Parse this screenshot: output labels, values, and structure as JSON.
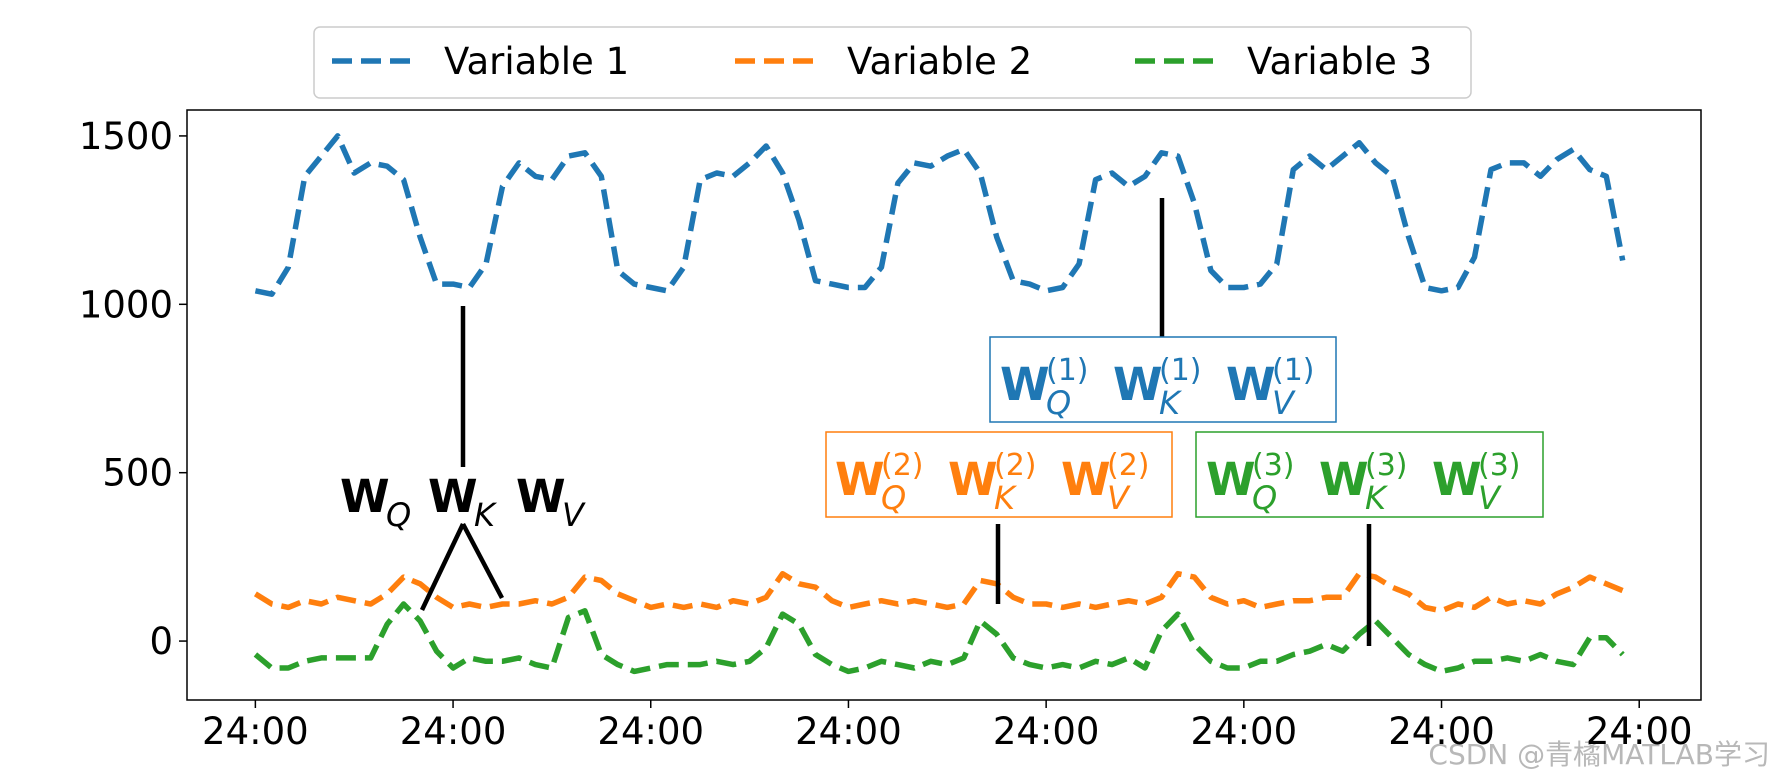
{
  "chart_data": {
    "type": "line",
    "x": [
      0,
      2,
      4,
      6,
      8,
      10,
      12,
      14,
      16,
      18,
      20,
      22,
      24,
      26,
      28,
      30,
      32,
      34,
      36,
      38,
      40,
      42,
      44,
      46,
      48,
      50,
      52,
      54,
      56,
      58,
      60,
      62,
      64,
      66,
      68,
      70,
      72,
      74,
      76,
      78,
      80,
      82,
      84,
      86,
      88,
      90,
      92,
      94,
      96,
      98,
      100,
      102,
      104,
      106,
      108,
      110,
      112,
      114,
      116,
      118,
      120,
      122,
      124,
      126,
      128,
      130,
      132,
      134,
      136,
      138,
      140,
      142,
      144,
      146,
      148,
      150,
      152,
      154,
      156,
      158,
      160,
      162,
      164,
      166
    ],
    "series": [
      {
        "name": "Variable 1",
        "color": "#1f77b4",
        "values": [
          1040,
          1030,
          1110,
          1380,
          1440,
          1500,
          1390,
          1420,
          1410,
          1370,
          1200,
          1060,
          1060,
          1050,
          1120,
          1350,
          1420,
          1380,
          1370,
          1440,
          1450,
          1380,
          1100,
          1060,
          1050,
          1040,
          1110,
          1370,
          1390,
          1380,
          1420,
          1470,
          1390,
          1250,
          1070,
          1060,
          1050,
          1050,
          1110,
          1360,
          1420,
          1410,
          1440,
          1460,
          1390,
          1200,
          1070,
          1060,
          1040,
          1050,
          1120,
          1370,
          1390,
          1350,
          1380,
          1450,
          1440,
          1300,
          1100,
          1050,
          1050,
          1060,
          1120,
          1400,
          1440,
          1400,
          1440,
          1480,
          1420,
          1380,
          1200,
          1050,
          1040,
          1050,
          1140,
          1400,
          1420,
          1420,
          1380,
          1430,
          1460,
          1400,
          1380,
          1130
        ]
      },
      {
        "name": "Variable 2",
        "color": "#ff7f0e",
        "values": [
          140,
          110,
          100,
          120,
          110,
          130,
          120,
          110,
          140,
          190,
          170,
          130,
          100,
          110,
          100,
          110,
          110,
          120,
          110,
          130,
          190,
          180,
          140,
          120,
          100,
          110,
          100,
          110,
          100,
          120,
          110,
          130,
          200,
          170,
          160,
          120,
          100,
          110,
          120,
          110,
          120,
          110,
          100,
          110,
          180,
          170,
          130,
          110,
          110,
          100,
          110,
          100,
          110,
          120,
          110,
          130,
          200,
          190,
          130,
          110,
          120,
          100,
          110,
          120,
          120,
          130,
          130,
          200,
          190,
          160,
          140,
          100,
          90,
          110,
          100,
          130,
          110,
          120,
          110,
          140,
          160,
          190,
          170,
          150
        ]
      },
      {
        "name": "Variable 3",
        "color": "#2ca02c",
        "values": [
          -40,
          -80,
          -80,
          -60,
          -50,
          -50,
          -50,
          -50,
          50,
          110,
          60,
          -30,
          -80,
          -50,
          -60,
          -60,
          -50,
          -70,
          -80,
          70,
          90,
          -40,
          -70,
          -90,
          -80,
          -70,
          -70,
          -70,
          -60,
          -70,
          -60,
          -20,
          80,
          50,
          -40,
          -70,
          -90,
          -80,
          -60,
          -70,
          -80,
          -60,
          -70,
          -50,
          60,
          20,
          -50,
          -70,
          -80,
          -70,
          -80,
          -60,
          -70,
          -50,
          -80,
          30,
          80,
          -10,
          -60,
          -80,
          -80,
          -60,
          -60,
          -40,
          -30,
          -10,
          -30,
          20,
          60,
          10,
          -40,
          -70,
          -90,
          -80,
          -60,
          -60,
          -50,
          -60,
          -40,
          -60,
          -70,
          10,
          10,
          -40
        ]
      }
    ],
    "xlim": [
      -8.3,
      175.5
    ],
    "xticks": [
      {
        "value": 0,
        "label": "24:00"
      },
      {
        "value": 24,
        "label": "24:00"
      },
      {
        "value": 48,
        "label": "24:00"
      },
      {
        "value": 72,
        "label": "24:00"
      },
      {
        "value": 96,
        "label": "24:00"
      },
      {
        "value": 120,
        "label": "24:00"
      },
      {
        "value": 144,
        "label": "24:00"
      },
      {
        "value": 168,
        "label": "24:00"
      }
    ],
    "ylim": [
      -175,
      1577
    ],
    "yticks": [
      0,
      500,
      1000,
      1500
    ],
    "legend": "upper center",
    "annotations": [
      {
        "color": "#000000",
        "terms": [
          {
            "base": "W",
            "sub": "Q"
          },
          {
            "base": "W",
            "sub": "K"
          },
          {
            "base": "W",
            "sub": "V"
          }
        ]
      },
      {
        "color": "#1f77b4",
        "terms": [
          {
            "base": "W",
            "sub": "Q",
            "sup": "(1)"
          },
          {
            "base": "W",
            "sub": "K",
            "sup": "(1)"
          },
          {
            "base": "W",
            "sub": "V",
            "sup": "(1)"
          }
        ]
      },
      {
        "color": "#ff7f0e",
        "terms": [
          {
            "base": "W",
            "sub": "Q",
            "sup": "(2)"
          },
          {
            "base": "W",
            "sub": "K",
            "sup": "(2)"
          },
          {
            "base": "W",
            "sub": "V",
            "sup": "(2)"
          }
        ]
      },
      {
        "color": "#2ca02c",
        "terms": [
          {
            "base": "W",
            "sub": "Q",
            "sup": "(3)"
          },
          {
            "base": "W",
            "sub": "K",
            "sup": "(3)"
          },
          {
            "base": "W",
            "sub": "V",
            "sup": "(3)"
          }
        ]
      }
    ],
    "watermark": "CSDN @青橘MATLAB学习"
  }
}
